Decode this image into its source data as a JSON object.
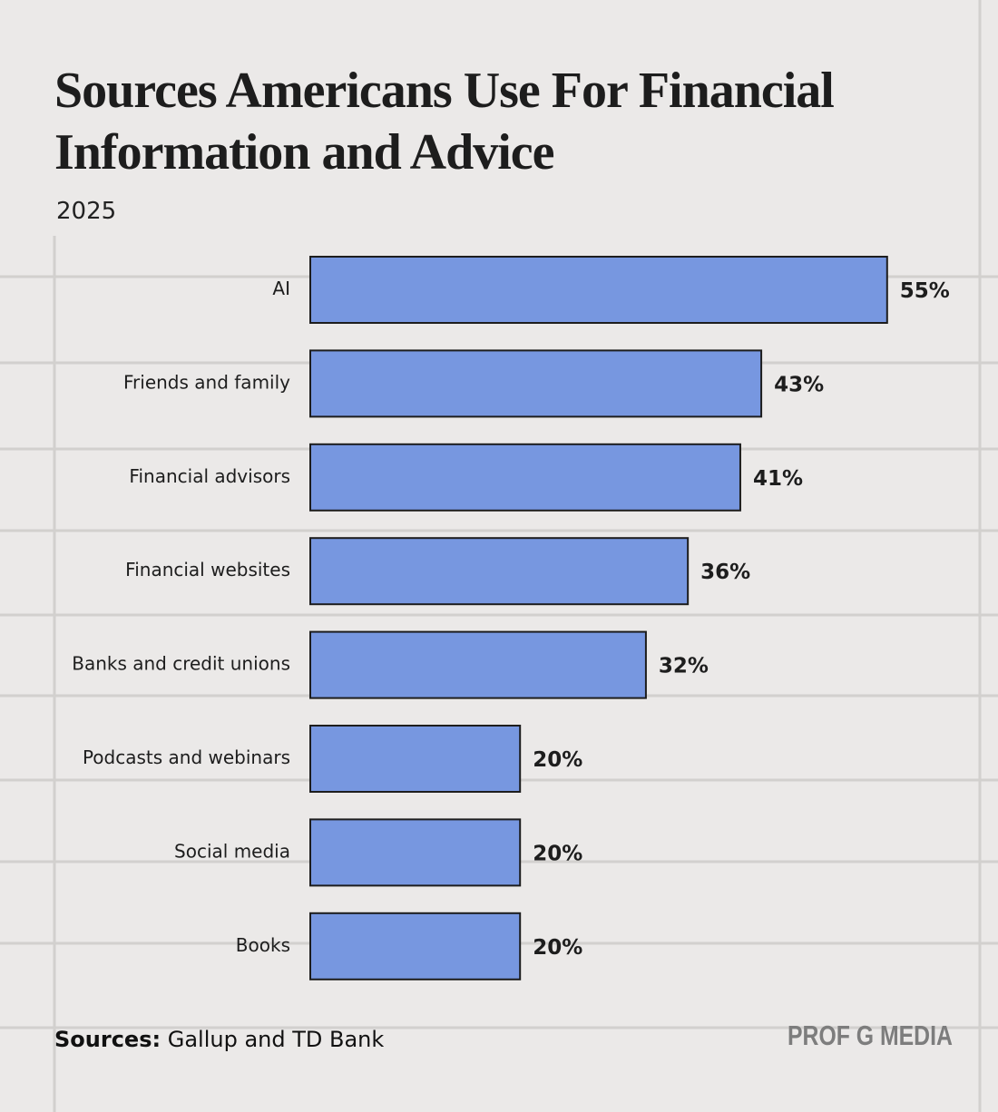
{
  "chart_data": {
    "type": "bar",
    "orientation": "horizontal",
    "title": "Sources Americans Use For Financial Information and Advice",
    "subtitle": "2025",
    "categories": [
      "AI",
      "Friends and family",
      "Financial advisors",
      "Financial websites",
      "Banks and credit unions",
      "Podcasts and webinars",
      "Social media",
      "Books"
    ],
    "values": [
      55,
      43,
      41,
      36,
      32,
      20,
      20,
      20
    ],
    "value_labels": [
      "55%",
      "43%",
      "41%",
      "36%",
      "32%",
      "20%",
      "20%",
      "20%"
    ],
    "color": "#7797e0",
    "source_label": "Sources:",
    "source": "Gallup and TD Bank",
    "brand": "PROF G MEDIA"
  }
}
